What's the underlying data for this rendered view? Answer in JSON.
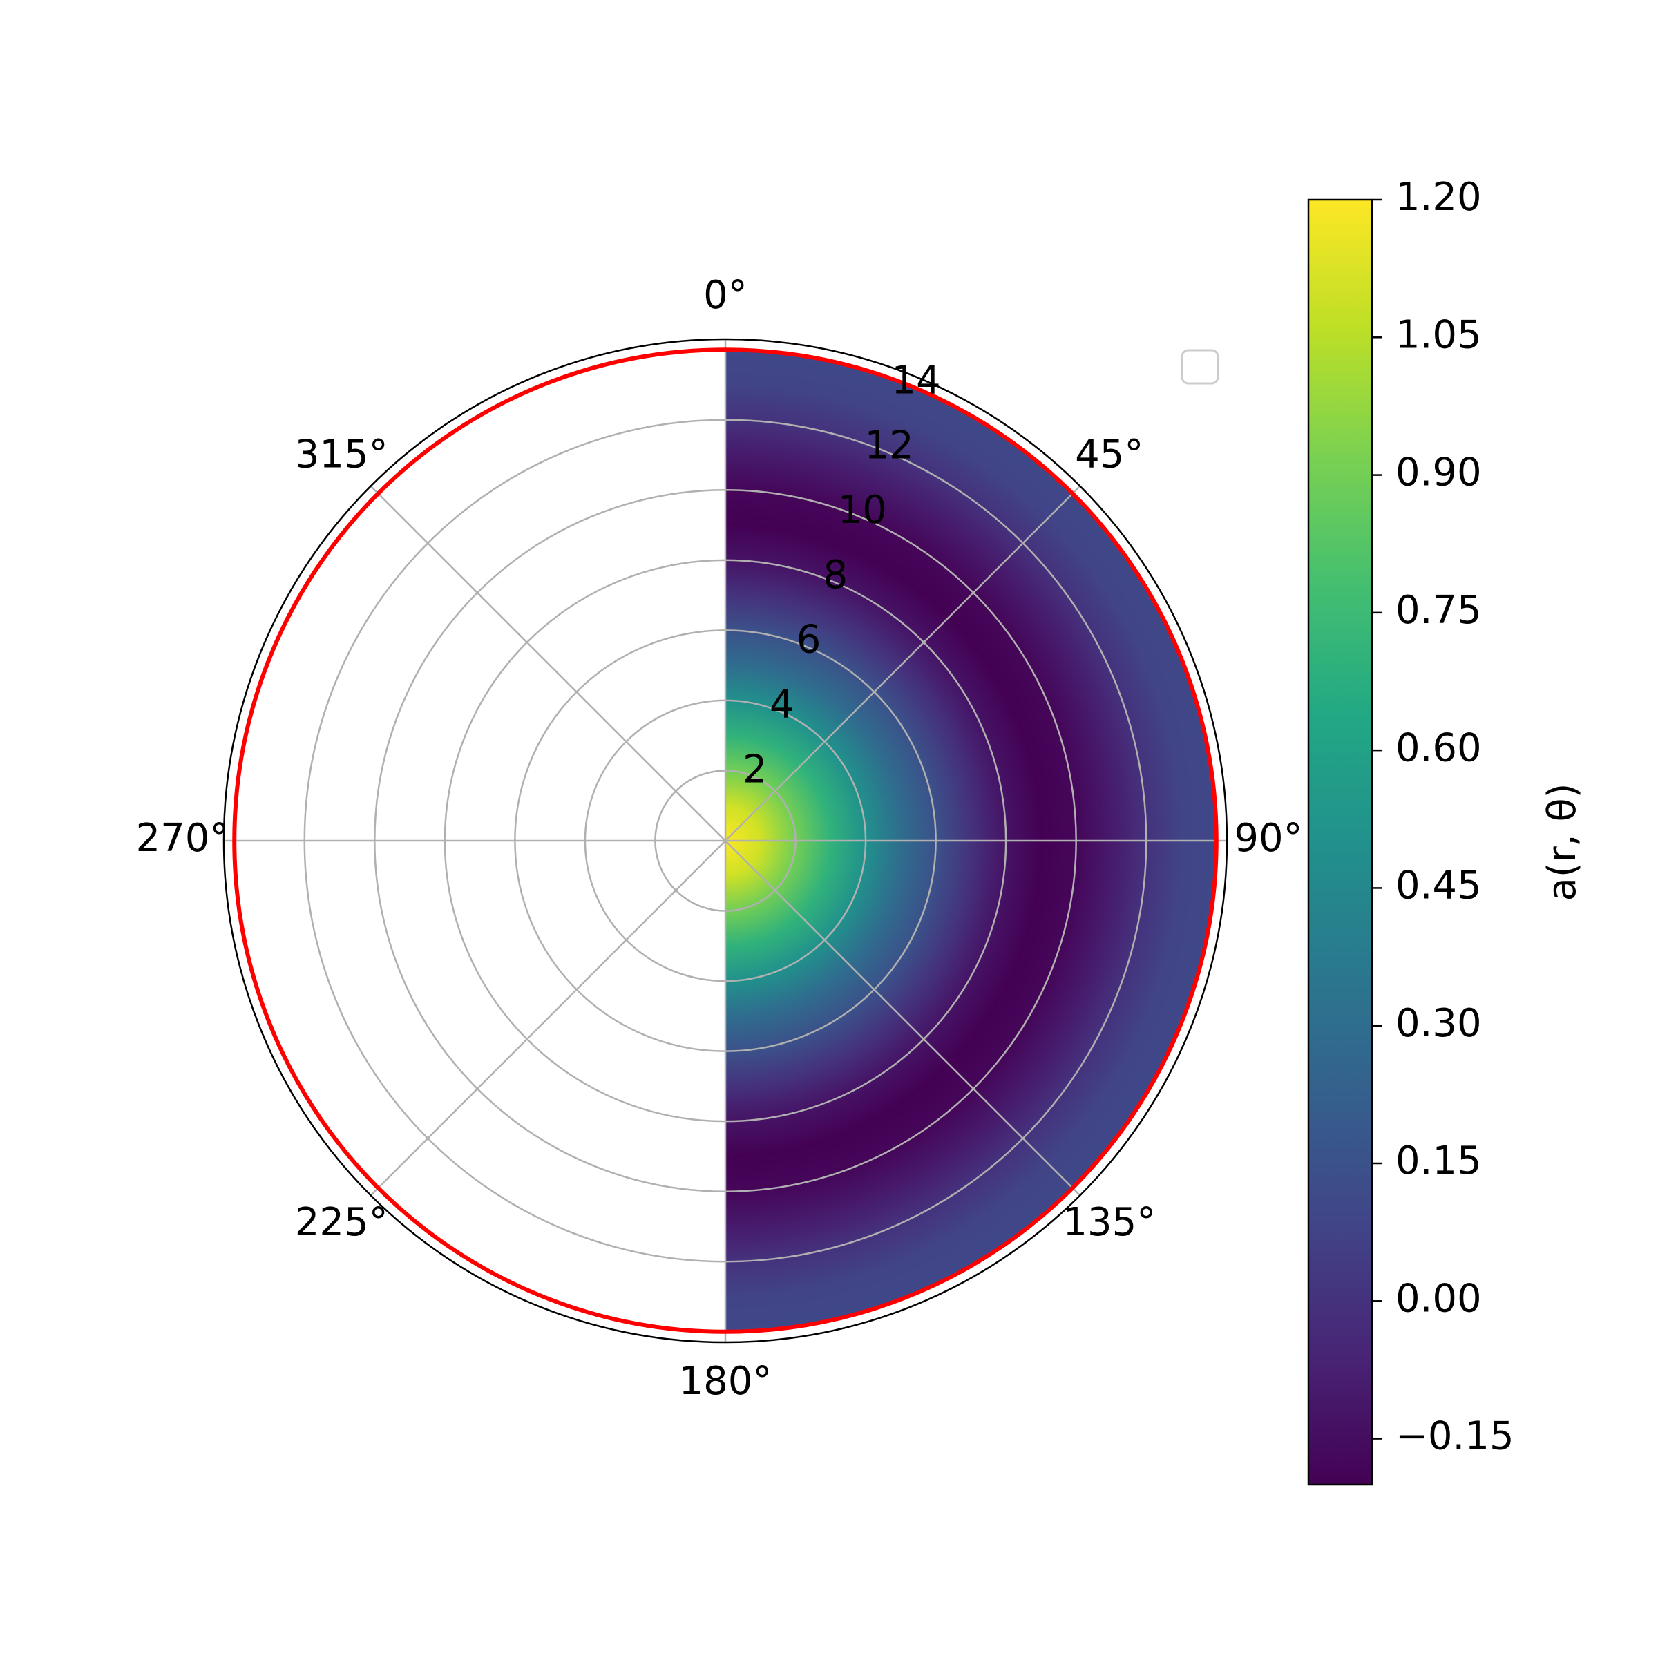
{
  "chart_data": {
    "type": "heatmap",
    "projection": "polar",
    "description_of_field": "Filled polar color map of a(r, θ) over θ from 0° to 180°, r from 0 to 14; strongest at the center, decreasing with r, dipping below zero near r ≈ 8–10 and rising slightly toward the rim.",
    "theta_direction": "clockwise",
    "theta_zero_location": "top",
    "theta_range_deg": [
      0,
      180
    ],
    "theta_tick_labels": [
      "0°",
      "45°",
      "90°",
      "135°",
      "180°",
      "225°",
      "270°",
      "315°"
    ],
    "r_tick_labels": [
      "2",
      "4",
      "6",
      "8",
      "10",
      "12",
      "14"
    ],
    "r_ticks": [
      2,
      4,
      6,
      8,
      10,
      12,
      14
    ],
    "r_max": 14.3,
    "boundary_circle_radius": 14,
    "boundary_circle_color": "#ff0000",
    "grid": true,
    "colormap": "viridis",
    "colorbar": {
      "label": "a(r, θ)",
      "vmin": -0.2,
      "vmax": 1.2,
      "tick_labels": [
        "−0.15",
        "0.00",
        "0.15",
        "0.30",
        "0.45",
        "0.60",
        "0.75",
        "0.90",
        "1.05",
        "1.20"
      ],
      "ticks": [
        -0.15,
        0.0,
        0.15,
        0.3,
        0.45,
        0.6,
        0.75,
        0.9,
        1.05,
        1.2
      ]
    },
    "radial_profile": {
      "r": [
        0,
        1,
        2,
        3,
        4,
        5,
        6,
        7,
        8,
        9,
        10,
        11,
        12,
        13,
        14
      ],
      "a": [
        1.2,
        1.1,
        0.9,
        0.7,
        0.5,
        0.3,
        0.15,
        0.0,
        -0.13,
        -0.2,
        -0.18,
        -0.1,
        0.0,
        0.08,
        0.1
      ]
    },
    "legend": {
      "location": "upper right",
      "entries": []
    }
  }
}
